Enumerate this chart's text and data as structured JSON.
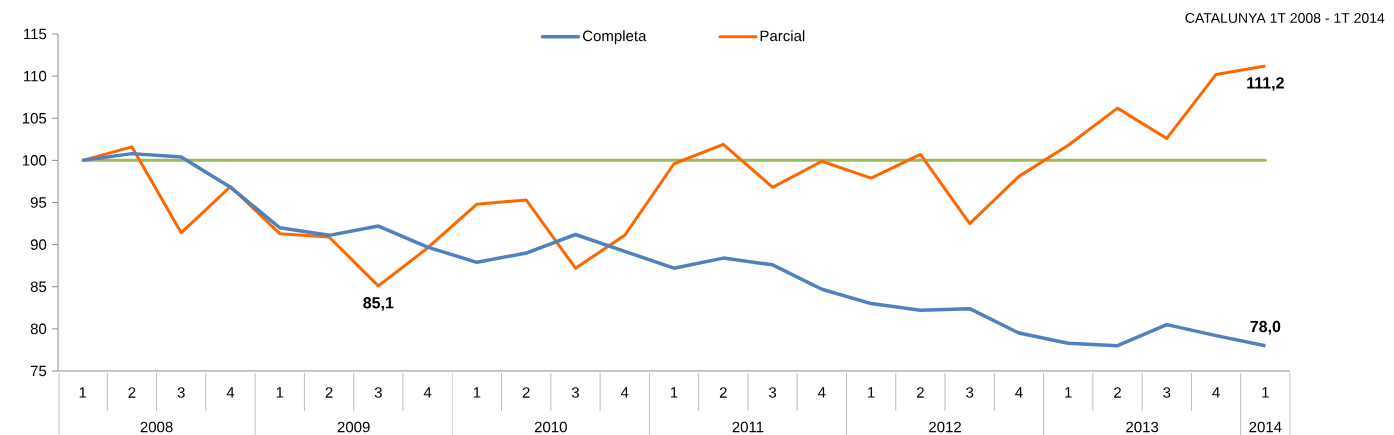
{
  "chart_data": {
    "type": "line",
    "title": "CATALUNYA 1T 2008 - 1T 2014",
    "categories": [
      "1",
      "2",
      "3",
      "4",
      "1",
      "2",
      "3",
      "4",
      "1",
      "2",
      "3",
      "4",
      "1",
      "2",
      "3",
      "4",
      "1",
      "2",
      "3",
      "4",
      "1",
      "2",
      "3",
      "4",
      "1"
    ],
    "annotations": [
      "2008",
      "2009",
      "2010",
      "2011",
      "2012",
      "2013",
      "2014"
    ],
    "series": [
      {
        "name": "Completa",
        "color": "#4f81bd",
        "values": [
          100,
          100.8,
          100.4,
          96.8,
          92.0,
          91.1,
          92.2,
          89.7,
          87.9,
          89.0,
          91.2,
          89.2,
          87.2,
          88.4,
          87.6,
          84.7,
          83.0,
          82.2,
          82.4,
          79.5,
          78.3,
          78.0,
          80.5,
          79.2,
          78.0
        ],
        "value_labels": [
          null,
          null,
          null,
          null,
          null,
          null,
          null,
          null,
          null,
          null,
          null,
          null,
          null,
          null,
          null,
          null,
          null,
          null,
          null,
          null,
          null,
          null,
          null,
          null,
          "78,0"
        ]
      },
      {
        "name": "Parcial",
        "color": "#ff6600",
        "values": [
          100,
          101.6,
          91.4,
          96.9,
          91.3,
          90.9,
          85.1,
          89.6,
          94.8,
          95.3,
          87.2,
          91.1,
          99.6,
          101.9,
          96.8,
          99.9,
          97.9,
          100.7,
          92.5,
          98.1,
          101.8,
          106.2,
          102.6,
          110.2,
          111.2
        ],
        "value_labels": [
          null,
          null,
          null,
          null,
          null,
          null,
          "85,1",
          null,
          null,
          null,
          null,
          null,
          null,
          null,
          null,
          null,
          null,
          null,
          null,
          null,
          null,
          null,
          null,
          null,
          "111,2"
        ]
      }
    ],
    "ref_lines": [
      {
        "axis": "y",
        "value": 100,
        "color": "#9bbb59"
      }
    ],
    "ylim": [
      75,
      115
    ],
    "yticks": [
      75,
      80,
      85,
      90,
      95,
      100,
      105,
      110,
      115
    ],
    "legend": "top",
    "grid": false,
    "marker": "none",
    "line_style": "solid"
  }
}
